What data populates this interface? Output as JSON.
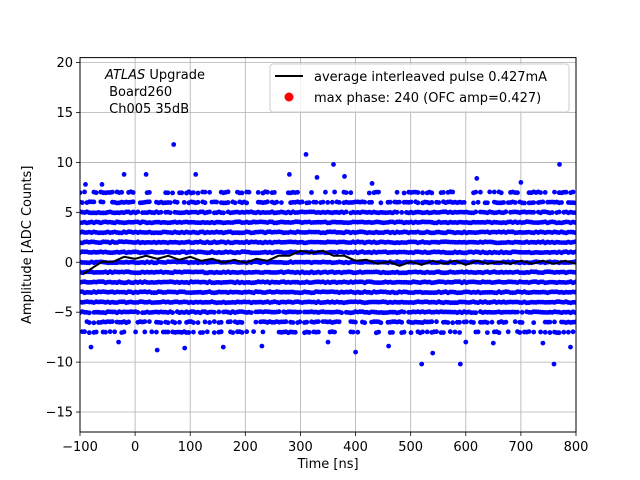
{
  "chart_data": {
    "type": "scatter",
    "xlabel": "Time [ns]",
    "ylabel": "Amplitude [ADC Counts]",
    "xlim": [
      -100,
      800
    ],
    "ylim": [
      -17,
      20.5
    ],
    "xticks": [
      -100,
      0,
      100,
      200,
      300,
      400,
      500,
      600,
      700,
      800
    ],
    "yticks": [
      -15,
      -10,
      -5,
      0,
      5,
      10,
      15,
      20
    ],
    "xtick_labels": [
      "−100",
      "0",
      "100",
      "200",
      "300",
      "400",
      "500",
      "600",
      "700",
      "800"
    ],
    "ytick_labels": [
      "−15",
      "−10",
      "−5",
      "0",
      "5",
      "10",
      "15",
      "20"
    ],
    "grid": true,
    "legend_position": "top-right",
    "annotation": {
      "experiment": "ATLAS",
      "line1_rest": " Upgrade",
      "line2": " Board260",
      "line3": " Ch005 35dB"
    },
    "series": [
      {
        "name": "average interleaved pulse 0.427mA",
        "type": "line",
        "color": "#000000",
        "points": [
          [
            -95,
            -1.2
          ],
          [
            -80,
            -0.5
          ],
          [
            -60,
            -0.1
          ],
          [
            -40,
            0.2
          ],
          [
            -20,
            0.4
          ],
          [
            0,
            0.5
          ],
          [
            20,
            0.5
          ],
          [
            40,
            0.5
          ],
          [
            60,
            0.5
          ],
          [
            80,
            0.4
          ],
          [
            100,
            0.4
          ],
          [
            120,
            0.3
          ],
          [
            140,
            0.2
          ],
          [
            160,
            0.1
          ],
          [
            180,
            0.1
          ],
          [
            200,
            0.1
          ],
          [
            220,
            0.2
          ],
          [
            240,
            0.3
          ],
          [
            260,
            0.5
          ],
          [
            280,
            0.8
          ],
          [
            300,
            1.0
          ],
          [
            320,
            1.1
          ],
          [
            340,
            1.0
          ],
          [
            360,
            0.8
          ],
          [
            380,
            0.5
          ],
          [
            400,
            0.3
          ],
          [
            420,
            0.1
          ],
          [
            440,
            0.0
          ],
          [
            460,
            -0.1
          ],
          [
            480,
            -0.2
          ],
          [
            500,
            -0.1
          ],
          [
            520,
            -0.1
          ],
          [
            540,
            0.0
          ],
          [
            560,
            0.0
          ],
          [
            580,
            0.0
          ],
          [
            600,
            -0.1
          ],
          [
            620,
            0.0
          ],
          [
            640,
            0.0
          ],
          [
            660,
            -0.1
          ],
          [
            680,
            0.0
          ],
          [
            700,
            0.0
          ],
          [
            720,
            0.0
          ],
          [
            740,
            0.0
          ],
          [
            760,
            0.0
          ],
          [
            780,
            0.0
          ],
          [
            800,
            0.0
          ]
        ]
      },
      {
        "name": "max phase: 240 (OFC amp=0.427)",
        "type": "scatter",
        "color": "#ff0000"
      },
      {
        "name": "samples",
        "type": "scatter",
        "color": "#0000ff",
        "x_range": [
          -100,
          800
        ],
        "dense_levels": [
          -4,
          -3,
          -2,
          -1,
          0,
          1,
          2,
          3,
          4
        ],
        "sparse_levels": [
          -7,
          -6,
          -5,
          5,
          6,
          7
        ],
        "outliers": [
          [
            -90,
            7.8
          ],
          [
            -80,
            -8.5
          ],
          [
            -60,
            7.8
          ],
          [
            -30,
            -8.0
          ],
          [
            -20,
            8.8
          ],
          [
            20,
            8.8
          ],
          [
            40,
            -8.8
          ],
          [
            70,
            11.8
          ],
          [
            90,
            -8.6
          ],
          [
            110,
            8.8
          ],
          [
            160,
            -8.5
          ],
          [
            230,
            -8.4
          ],
          [
            280,
            8.8
          ],
          [
            310,
            10.8
          ],
          [
            330,
            8.5
          ],
          [
            350,
            -8.0
          ],
          [
            360,
            9.8
          ],
          [
            380,
            8.6
          ],
          [
            400,
            -9.0
          ],
          [
            430,
            7.9
          ],
          [
            460,
            -8.4
          ],
          [
            520,
            -10.2
          ],
          [
            540,
            -9.1
          ],
          [
            590,
            -10.2
          ],
          [
            600,
            -8.0
          ],
          [
            620,
            8.4
          ],
          [
            650,
            -8.1
          ],
          [
            700,
            8.0
          ],
          [
            740,
            -8.1
          ],
          [
            760,
            -10.2
          ],
          [
            770,
            9.8
          ],
          [
            790,
            -8.5
          ]
        ]
      }
    ]
  }
}
